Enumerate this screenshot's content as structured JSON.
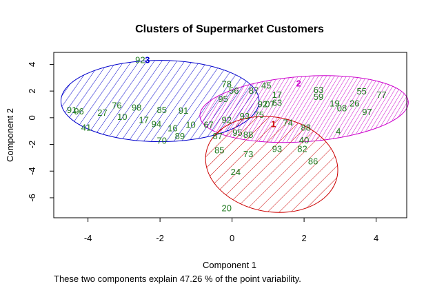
{
  "chart_data": {
    "type": "scatter",
    "title": "Clusters of Supermarket Customers",
    "xlabel": "Component 1",
    "ylabel": "Component 2",
    "subtitle": "These two components explain 47.26 % of the point variability.",
    "xlim": [
      -4.95,
      4.85
    ],
    "ylim": [
      -7.5,
      4.9
    ],
    "xticks": [
      -4,
      -2,
      0,
      2,
      4
    ],
    "yticks": [
      -6,
      -4,
      -2,
      0,
      2,
      4
    ],
    "grid": false,
    "point_color": "#1f7a1f",
    "clusters": [
      {
        "id": "3",
        "color": "#0000cc",
        "center": [
          -2.35,
          4.35
        ],
        "ellipse": {
          "cx": -2.0,
          "cy": 1.25,
          "rx": 2.75,
          "ry": 3.05,
          "angle": 0
        }
      },
      {
        "id": "2",
        "color": "#cc00cc",
        "center": [
          1.85,
          2.6
        ],
        "ellipse": {
          "cx": 2.0,
          "cy": 0.65,
          "rx": 2.9,
          "ry": 2.45,
          "angle": 4
        }
      },
      {
        "id": "1",
        "color": "#cc0000",
        "center": [
          1.15,
          -0.45
        ],
        "ellipse": {
          "cx": 1.1,
          "cy": -3.5,
          "rx": 1.85,
          "ry": 3.55,
          "angle": -10
        }
      }
    ],
    "points": [
      {
        "label": "92",
        "x": -2.55,
        "y": 4.35
      },
      {
        "label": "78",
        "x": -0.15,
        "y": 2.55
      },
      {
        "label": "45",
        "x": 0.95,
        "y": 2.45
      },
      {
        "label": "87",
        "x": 0.6,
        "y": 2.05
      },
      {
        "label": "56",
        "x": 0.05,
        "y": 2.05
      },
      {
        "label": "63",
        "x": 2.4,
        "y": 2.1
      },
      {
        "label": "55",
        "x": 3.6,
        "y": 2.0
      },
      {
        "label": "77",
        "x": 4.15,
        "y": 1.75
      },
      {
        "label": "17",
        "x": 1.25,
        "y": 1.75
      },
      {
        "label": "59",
        "x": 2.4,
        "y": 1.6
      },
      {
        "label": "95",
        "x": -0.25,
        "y": 1.45
      },
      {
        "label": "19",
        "x": 2.85,
        "y": 1.1
      },
      {
        "label": "26",
        "x": 3.4,
        "y": 1.1
      },
      {
        "label": "63",
        "x": 1.25,
        "y": 1.15
      },
      {
        "label": "92",
        "x": 0.85,
        "y": 1.05
      },
      {
        "label": "07",
        "x": 1.05,
        "y": 1.05
      },
      {
        "label": "08",
        "x": 3.05,
        "y": 0.75
      },
      {
        "label": "97",
        "x": 3.75,
        "y": 0.45
      },
      {
        "label": "91",
        "x": -4.45,
        "y": 0.6
      },
      {
        "label": "96",
        "x": -4.25,
        "y": 0.5
      },
      {
        "label": "27",
        "x": -3.6,
        "y": 0.4
      },
      {
        "label": "76",
        "x": -3.2,
        "y": 0.95
      },
      {
        "label": "98",
        "x": -2.65,
        "y": 0.8
      },
      {
        "label": "85",
        "x": -1.95,
        "y": 0.6
      },
      {
        "label": "91",
        "x": -1.35,
        "y": 0.55
      },
      {
        "label": "10",
        "x": -3.05,
        "y": 0.1
      },
      {
        "label": "17",
        "x": -2.45,
        "y": -0.15
      },
      {
        "label": "94",
        "x": -2.1,
        "y": -0.45
      },
      {
        "label": "41",
        "x": -4.05,
        "y": -0.7
      },
      {
        "label": "16",
        "x": -1.65,
        "y": -0.75
      },
      {
        "label": "89",
        "x": -1.45,
        "y": -1.35
      },
      {
        "label": "70",
        "x": -1.95,
        "y": -1.7
      },
      {
        "label": "10",
        "x": -1.15,
        "y": -0.5
      },
      {
        "label": "67",
        "x": -0.65,
        "y": -0.5
      },
      {
        "label": "92",
        "x": -0.15,
        "y": -0.15
      },
      {
        "label": "75",
        "x": 0.75,
        "y": 0.25
      },
      {
        "label": "93",
        "x": 0.35,
        "y": 0.15
      },
      {
        "label": "74",
        "x": 1.55,
        "y": -0.35
      },
      {
        "label": "88",
        "x": 2.05,
        "y": -0.7
      },
      {
        "label": "4",
        "x": 2.95,
        "y": -1.0
      },
      {
        "label": "87",
        "x": -0.4,
        "y": -1.35
      },
      {
        "label": "95",
        "x": 0.15,
        "y": -1.1
      },
      {
        "label": "88",
        "x": 0.45,
        "y": -1.25
      },
      {
        "label": "40",
        "x": 2.0,
        "y": -1.65
      },
      {
        "label": "82",
        "x": 1.95,
        "y": -2.3
      },
      {
        "label": "93",
        "x": 1.25,
        "y": -2.3
      },
      {
        "label": "85",
        "x": -0.35,
        "y": -2.4
      },
      {
        "label": "73",
        "x": 0.45,
        "y": -2.7
      },
      {
        "label": "86",
        "x": 2.25,
        "y": -3.25
      },
      {
        "label": "24",
        "x": 0.1,
        "y": -4.05
      },
      {
        "label": "20",
        "x": -0.15,
        "y": -6.75
      }
    ]
  }
}
